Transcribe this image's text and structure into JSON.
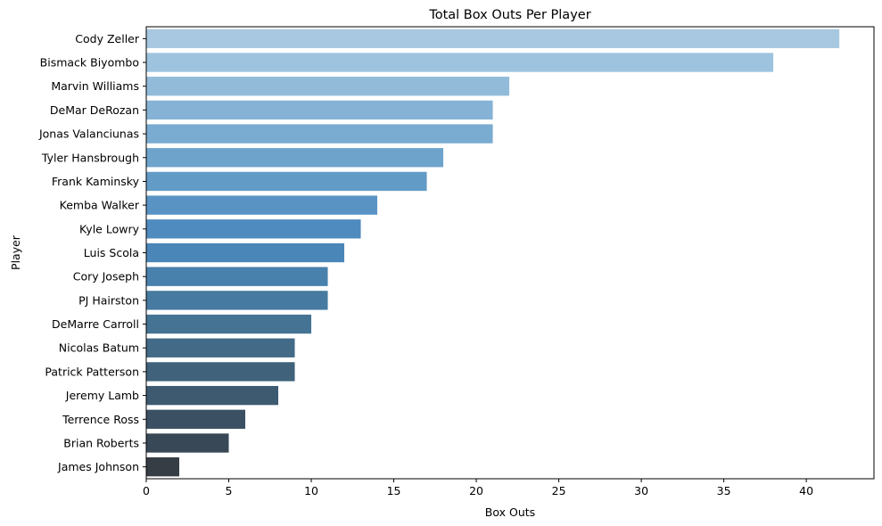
{
  "chart_data": {
    "type": "bar",
    "orientation": "horizontal",
    "title": "Total Box Outs Per Player",
    "xlabel": "Box Outs",
    "ylabel": "Player",
    "xlim": [
      0,
      44.1
    ],
    "xticks": [
      0,
      5,
      10,
      15,
      20,
      25,
      30,
      35,
      40
    ],
    "grid": false,
    "categories": [
      "Cody Zeller",
      "Bismack Biyombo",
      "Marvin Williams",
      "DeMar DeRozan",
      "Jonas Valanciunas",
      "Tyler Hansbrough",
      "Frank Kaminsky",
      "Kemba Walker",
      "Kyle Lowry",
      "Luis Scola",
      "Cory Joseph",
      "PJ Hairston",
      "DeMarre Carroll",
      "Nicolas Batum",
      "Patrick Patterson",
      "Jeremy Lamb",
      "Terrence Ross",
      "Brian Roberts",
      "James Johnson"
    ],
    "values": [
      42,
      38,
      22,
      21,
      21,
      18,
      17,
      14,
      13,
      12,
      11,
      11,
      10,
      9,
      9,
      8,
      6,
      5,
      2
    ],
    "colors": [
      "#a7c8e0",
      "#9ec3de",
      "#92bbd9",
      "#86b3d5",
      "#7aabd0",
      "#6ea3cc",
      "#639bc7",
      "#5993c3",
      "#4f8bbe",
      "#4a86b8",
      "#4781ac",
      "#467aa0",
      "#457394",
      "#436a87",
      "#40627b",
      "#3d5a70",
      "#3b5163",
      "#384856",
      "#363d44"
    ]
  }
}
